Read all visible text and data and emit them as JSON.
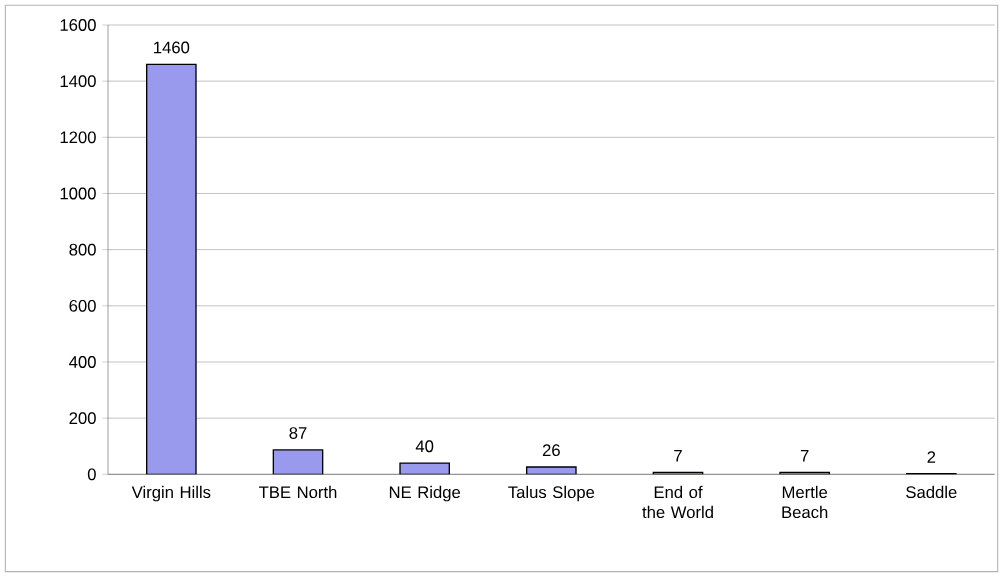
{
  "chart_data": {
    "type": "bar",
    "categories": [
      "Virgin Hills",
      "TBE North",
      "NE Ridge",
      "Talus Slope",
      "End of the World",
      "Mertle Beach",
      "Saddle"
    ],
    "values": [
      1460,
      87,
      40,
      26,
      7,
      7,
      2
    ],
    "color": "#9999ee",
    "ylim": [
      0,
      1600
    ],
    "yticks": [
      0,
      200,
      400,
      600,
      800,
      1000,
      1200,
      1400,
      1600
    ],
    "grid": "y",
    "data_labels": true
  }
}
